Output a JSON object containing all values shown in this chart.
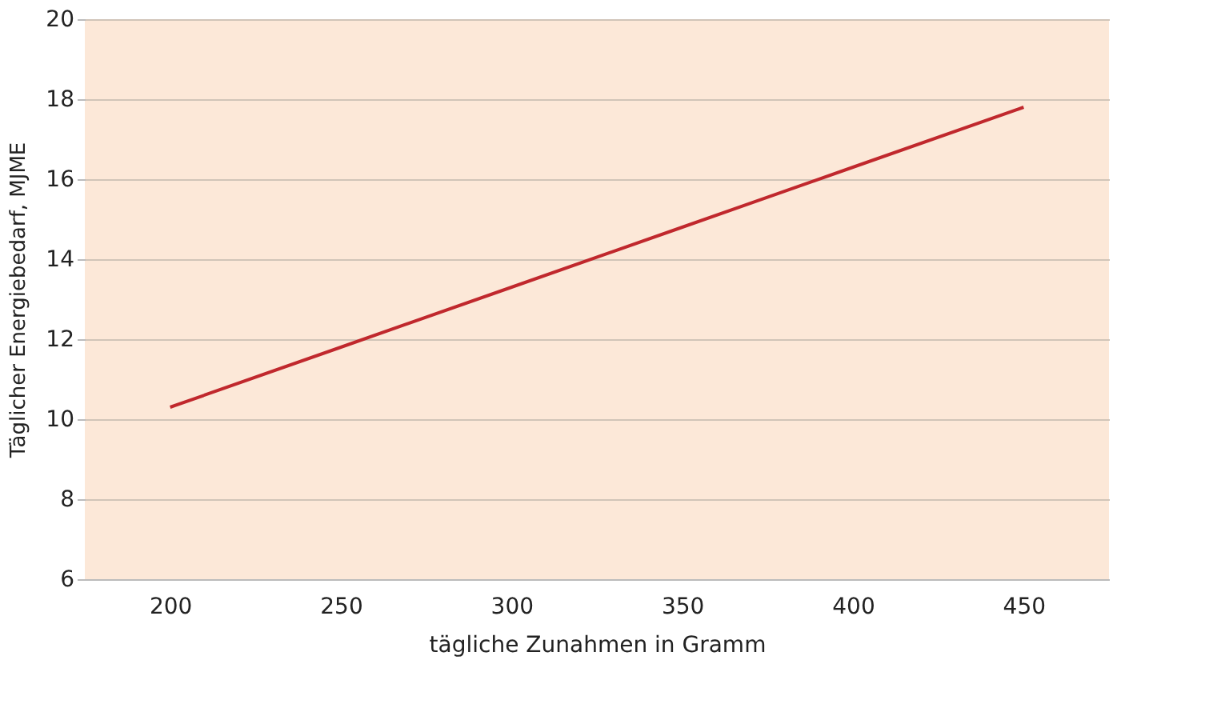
{
  "chart_data": {
    "type": "line",
    "categories": [
      "200",
      "250",
      "300",
      "350",
      "400",
      "450"
    ],
    "series": [
      {
        "color": "#c0282d",
        "values": [
          10.3,
          11.8,
          13.3,
          14.8,
          16.3,
          17.8
        ]
      }
    ],
    "xlabel": "tägliche Zunahmen in Gramm",
    "ylabel": "Täglicher Energiebedarf, MJME",
    "ylim": [
      6,
      20
    ],
    "yticks": [
      6,
      8,
      10,
      12,
      14,
      16,
      18,
      20
    ],
    "grid": "y",
    "marker": "none",
    "line_style": "solid"
  }
}
